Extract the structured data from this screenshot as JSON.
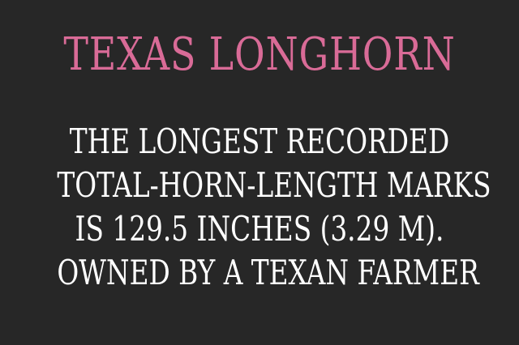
{
  "title": "TEXAS LONGHORN",
  "lines": [
    "THE LONGEST RECORDED",
    "TOTAL-HORN-LENGTH MARKS",
    "IS 129.5 INCHES (3.29 M).",
    "OWNED BY A TEXAN FARMER"
  ],
  "colors": {
    "background": "#272727",
    "title": "#d96b97",
    "body": "#ffffff"
  }
}
